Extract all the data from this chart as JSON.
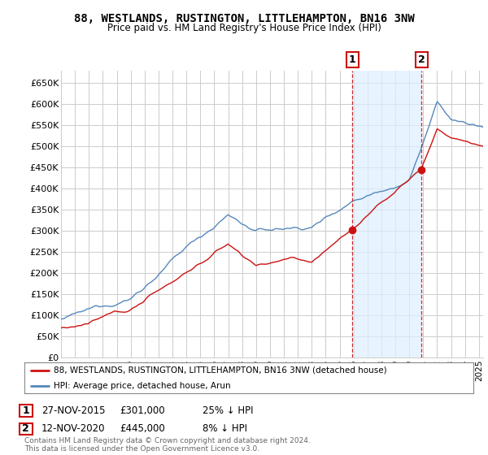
{
  "title1": "88, WESTLANDS, RUSTINGTON, LITTLEHAMPTON, BN16 3NW",
  "title2": "Price paid vs. HM Land Registry's House Price Index (HPI)",
  "ylabel_ticks": [
    "£0",
    "£50K",
    "£100K",
    "£150K",
    "£200K",
    "£250K",
    "£300K",
    "£350K",
    "£400K",
    "£450K",
    "£500K",
    "£550K",
    "£600K",
    "£650K"
  ],
  "ytick_vals": [
    0,
    50000,
    100000,
    150000,
    200000,
    250000,
    300000,
    350000,
    400000,
    450000,
    500000,
    550000,
    600000,
    650000
  ],
  "ylim": [
    0,
    680000
  ],
  "xlim_start": 1995.0,
  "xlim_end": 2025.3,
  "hpi_color": "#5588bb",
  "hpi_fill_color": "#ddeeff",
  "price_color": "#cc1111",
  "marker1_date": 2015.92,
  "marker1_price": 301000,
  "marker2_date": 2020.88,
  "marker2_price": 445000,
  "legend_line1": "88, WESTLANDS, RUSTINGTON, LITTLEHAMPTON, BN16 3NW (detached house)",
  "legend_line2": "HPI: Average price, detached house, Arun",
  "note1_date": "27-NOV-2015",
  "note1_price": "£301,000",
  "note1_hpi": "25% ↓ HPI",
  "note2_date": "12-NOV-2020",
  "note2_price": "£445,000",
  "note2_hpi": "8% ↓ HPI",
  "footer": "Contains HM Land Registry data © Crown copyright and database right 2024.\nThis data is licensed under the Open Government Licence v3.0.",
  "bg_color": "#ffffff",
  "plot_bg_color": "#ffffff",
  "grid_color": "#cccccc"
}
